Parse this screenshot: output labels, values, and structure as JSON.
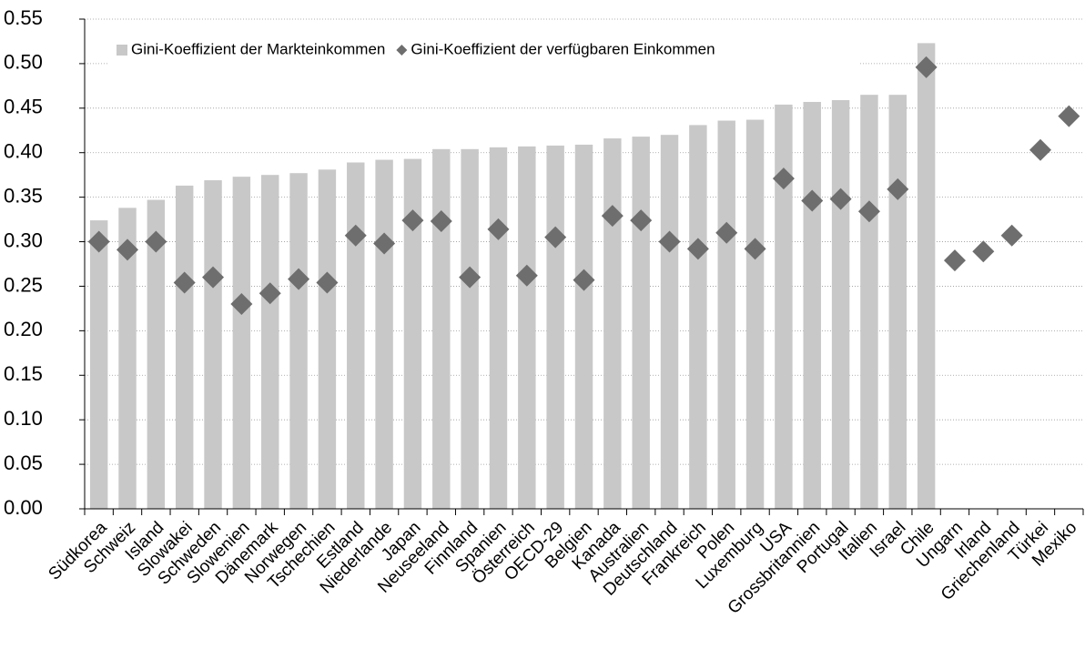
{
  "chart_data": {
    "type": "bar",
    "categories": [
      "Südkorea",
      "Schweiz",
      "Island",
      "Slowakei",
      "Schweden",
      "Slowenien",
      "Dänemark",
      "Norwegen",
      "Tschechien",
      "Estland",
      "Niederlande",
      "Japan",
      "Neuseeland",
      "Finnland",
      "Spanien",
      "Österreich",
      "OECD-29",
      "Belgien",
      "Kanada",
      "Australien",
      "Deutschland",
      "Frankreich",
      "Polen",
      "Luxemburg",
      "USA",
      "Grossbritannien",
      "Portugal",
      "Italien",
      "Israel",
      "Chile",
      "Ungarn",
      "Irland",
      "Griechenland",
      "Türkei",
      "Mexiko"
    ],
    "series": [
      {
        "name": "Gini-Koeffizient der Markteinkommen",
        "type": "bar",
        "color": "#c8c8c8",
        "values": [
          0.324,
          0.338,
          0.347,
          0.363,
          0.369,
          0.373,
          0.375,
          0.377,
          0.381,
          0.389,
          0.392,
          0.393,
          0.404,
          0.404,
          0.406,
          0.407,
          0.408,
          0.409,
          0.416,
          0.418,
          0.42,
          0.431,
          0.436,
          0.437,
          0.454,
          0.457,
          0.459,
          0.465,
          0.465,
          0.523,
          null,
          null,
          null,
          null,
          null
        ]
      },
      {
        "name": "Gini-Koeffizient der verfügbaren Einkommen",
        "type": "scatter",
        "color": "#6e6e6e",
        "values": [
          0.3,
          0.291,
          0.3,
          0.254,
          0.26,
          0.23,
          0.242,
          0.258,
          0.254,
          0.307,
          0.298,
          0.324,
          0.323,
          0.26,
          0.314,
          0.262,
          0.305,
          0.257,
          0.329,
          0.324,
          0.3,
          0.292,
          0.31,
          0.292,
          0.371,
          0.346,
          0.348,
          0.334,
          0.359,
          0.496,
          0.279,
          0.289,
          0.307,
          0.403,
          0.441
        ]
      }
    ],
    "ylim": [
      0,
      0.55
    ],
    "yticks": [
      {
        "value": 0,
        "label": "0.00"
      },
      {
        "value": 0.05,
        "label": "0.05"
      },
      {
        "value": 0.1,
        "label": "0.10"
      },
      {
        "value": 0.15,
        "label": "0.15"
      },
      {
        "value": 0.2,
        "label": "0.20"
      },
      {
        "value": 0.25,
        "label": "0.25"
      },
      {
        "value": 0.3,
        "label": "0.30"
      },
      {
        "value": 0.35,
        "label": "0.35"
      },
      {
        "value": 0.4,
        "label": "0.40"
      },
      {
        "value": 0.45,
        "label": "0.45"
      },
      {
        "value": 0.5,
        "label": "0.50"
      },
      {
        "value": 0.55,
        "label": "0.55"
      }
    ],
    "grid": true,
    "legend": "top-left"
  }
}
